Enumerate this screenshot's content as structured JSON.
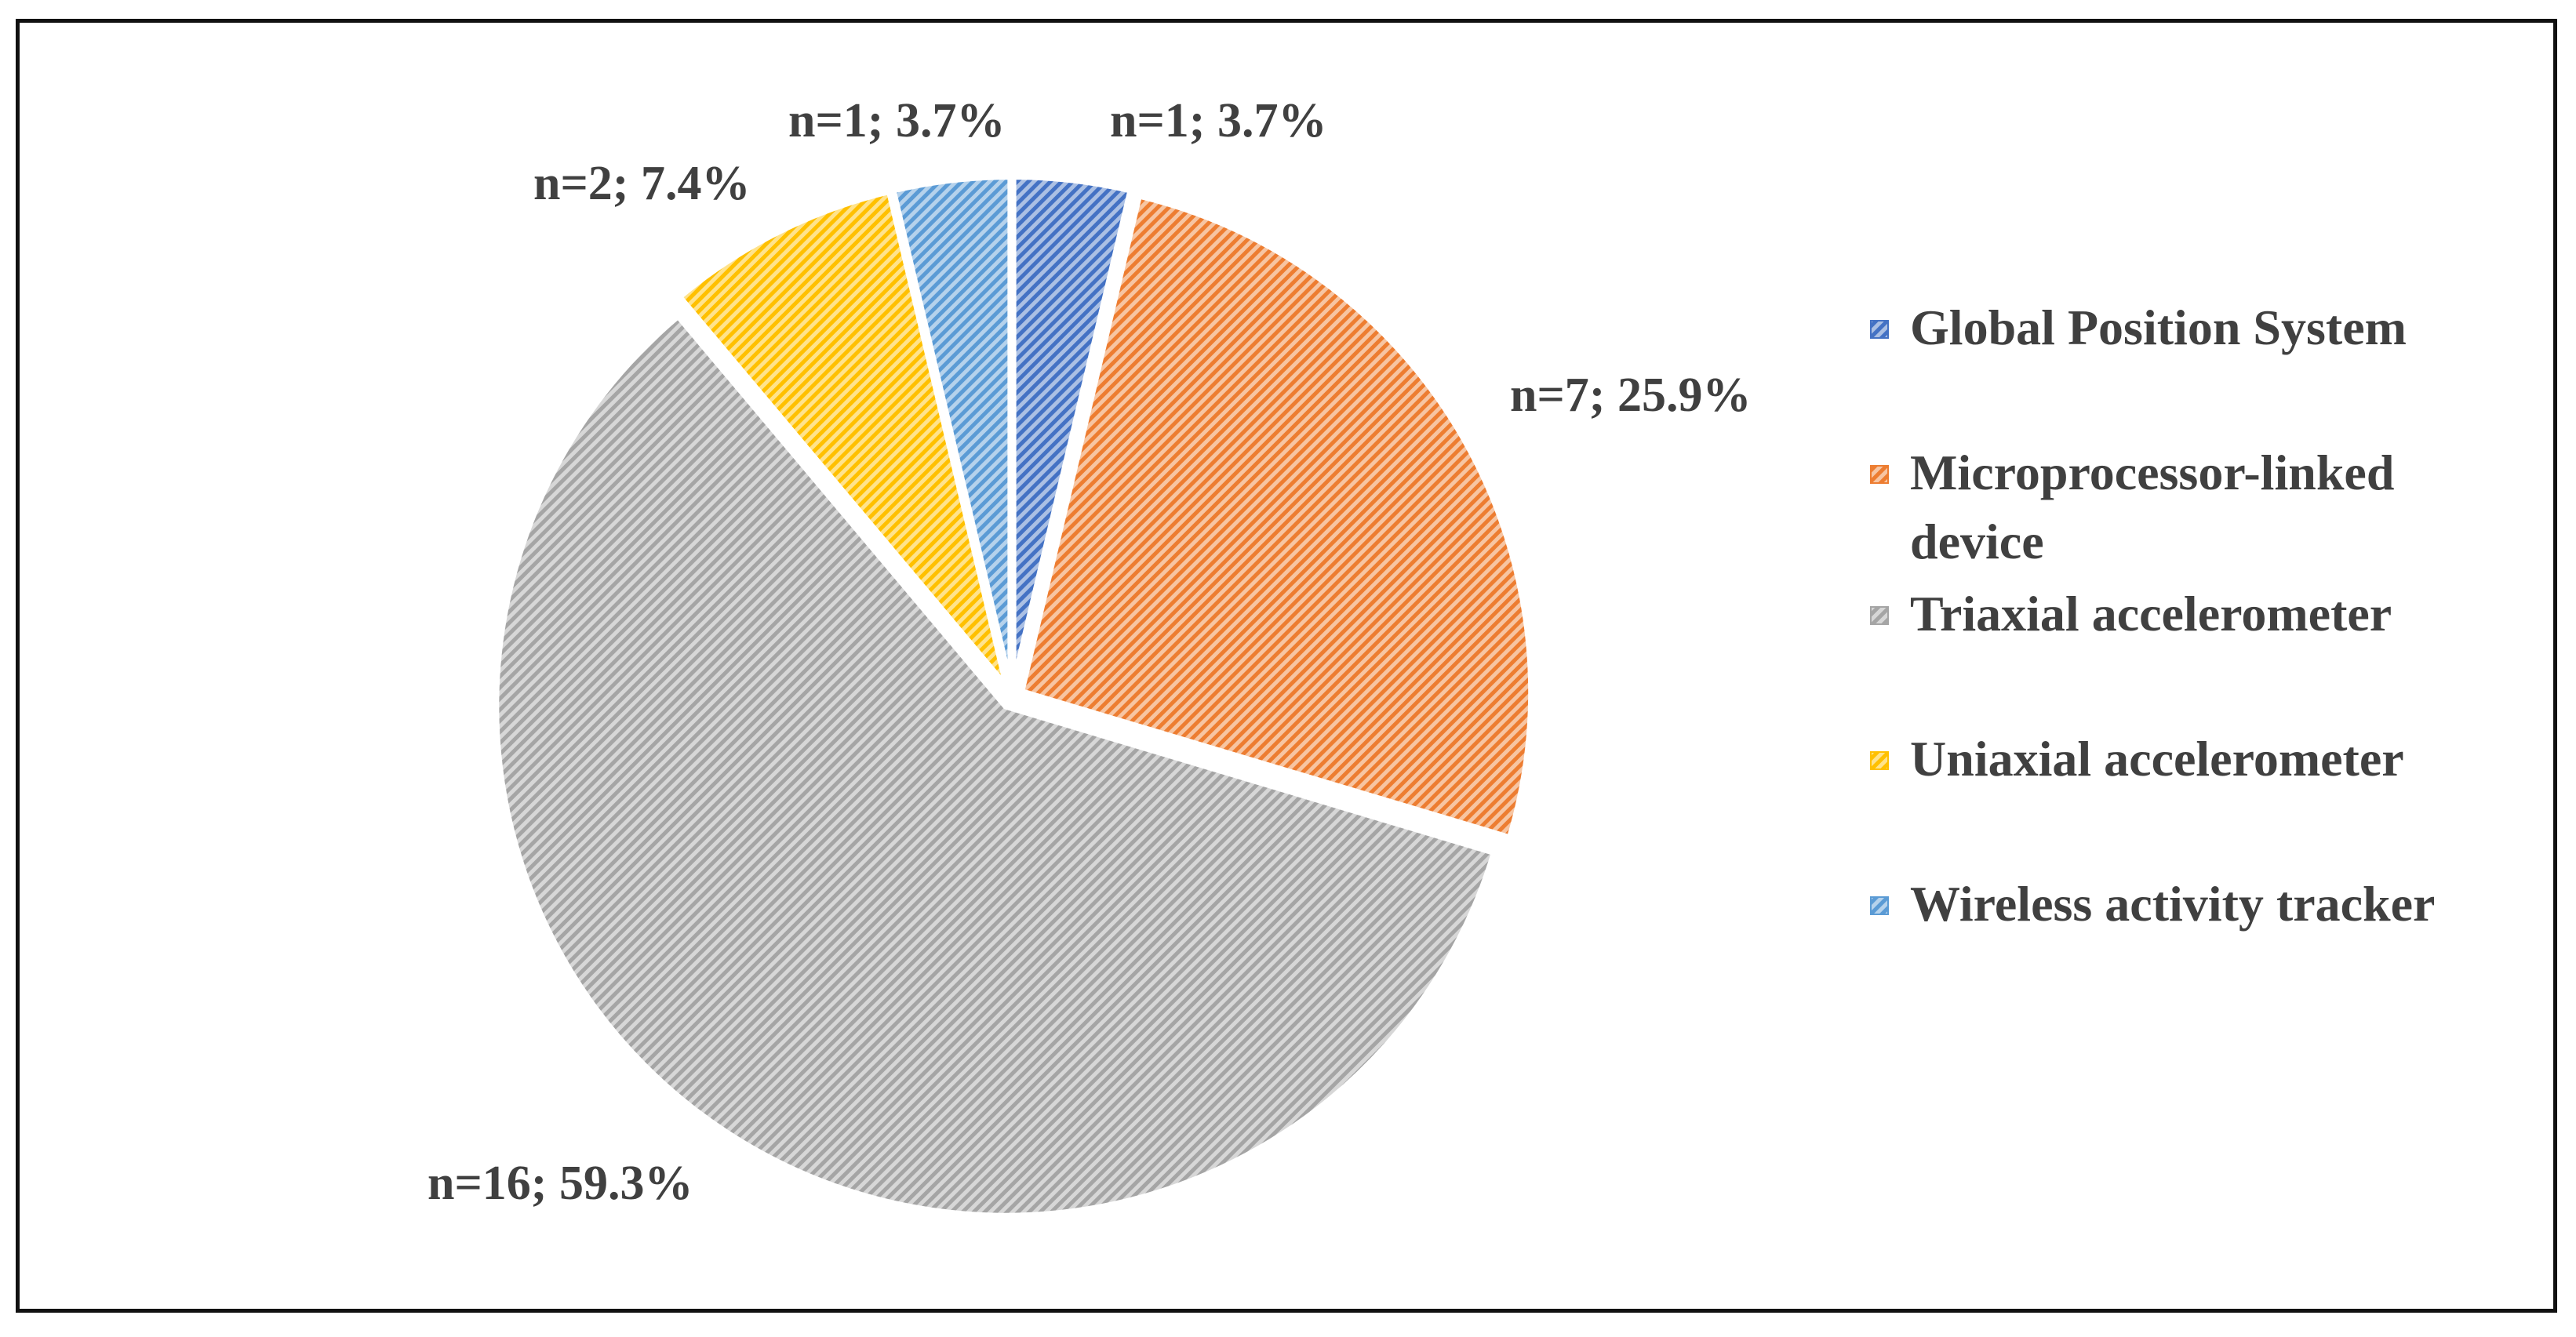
{
  "chart_data": {
    "type": "pie",
    "categories": [
      "Global Position System",
      "Microprocessor-linked device",
      "Triaxial accelerometer",
      "Uniaxial accelerometer",
      "Wireless activity tracker"
    ],
    "values": [
      1,
      7,
      16,
      2,
      1
    ],
    "percentages": [
      3.7,
      25.9,
      59.3,
      7.4,
      3.7
    ],
    "data_labels": [
      "n=1; 3.7%",
      "n=7; 25.9%",
      "n=16; 59.3%",
      "n=2; 7.4%",
      "n=1; 3.7%"
    ],
    "colors": [
      "#4472C4",
      "#ED7D31",
      "#A5A5A5",
      "#FFC000",
      "#5B9BD5"
    ],
    "legend": {
      "position": "right",
      "entries": [
        [
          "Global Position System"
        ],
        [
          "Microprocessor-linked",
          "device"
        ],
        [
          "Triaxial accelerometer"
        ],
        [
          "Uniaxial accelerometer"
        ],
        [
          "Wireless activity tracker"
        ]
      ]
    },
    "fill_style": "diagonal-hatch",
    "exploded": true
  }
}
